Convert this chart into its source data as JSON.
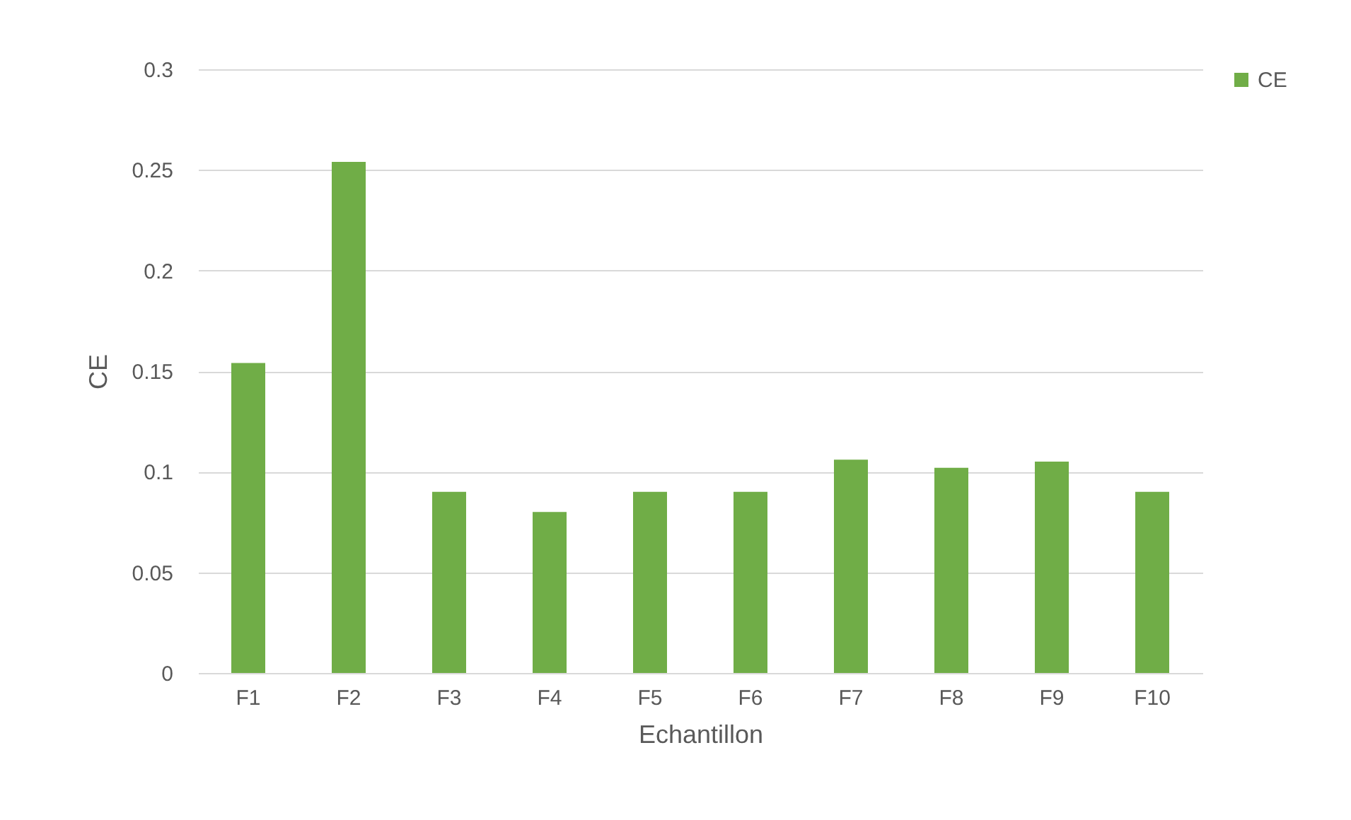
{
  "chart_data": {
    "type": "bar",
    "xlabel": "Echantillon",
    "ylabel": "CE",
    "categories": [
      "F1",
      "F2",
      "F3",
      "F4",
      "F5",
      "F6",
      "F7",
      "F8",
      "F9",
      "F10"
    ],
    "series": [
      {
        "name": "CE",
        "color": "#70ad47",
        "values": [
          0.154,
          0.254,
          0.09,
          0.08,
          0.09,
          0.09,
          0.106,
          0.102,
          0.105,
          0.09
        ]
      }
    ],
    "ylim": [
      0,
      0.3
    ],
    "yticks": [
      0,
      0.05,
      0.1,
      0.15,
      0.2,
      0.25,
      0.3
    ],
    "grid": "y",
    "legend": "right"
  }
}
